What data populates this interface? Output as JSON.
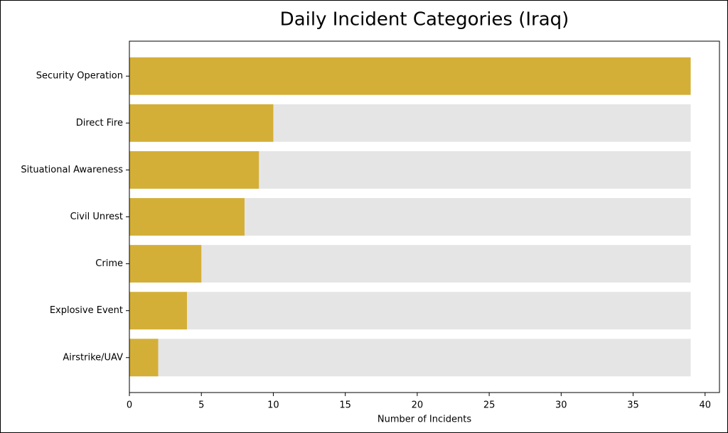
{
  "chart_data": {
    "type": "barh",
    "title": "Daily Incident Categories (Iraq)",
    "x_label": "Number of Incidents",
    "categories": [
      "Security Operation",
      "Direct Fire",
      "Situational Awareness",
      "Civil Unrest",
      "Crime",
      "Explosive Event",
      "Airstrike/UAV"
    ],
    "values": [
      39,
      10,
      9,
      8,
      5,
      4,
      2
    ],
    "color": "#d4af37",
    "background_color": "#e5e5e5",
    "xlim": [
      0,
      41
    ],
    "xticks": [
      0,
      5,
      10,
      15,
      20,
      25,
      30,
      35,
      40
    ]
  }
}
